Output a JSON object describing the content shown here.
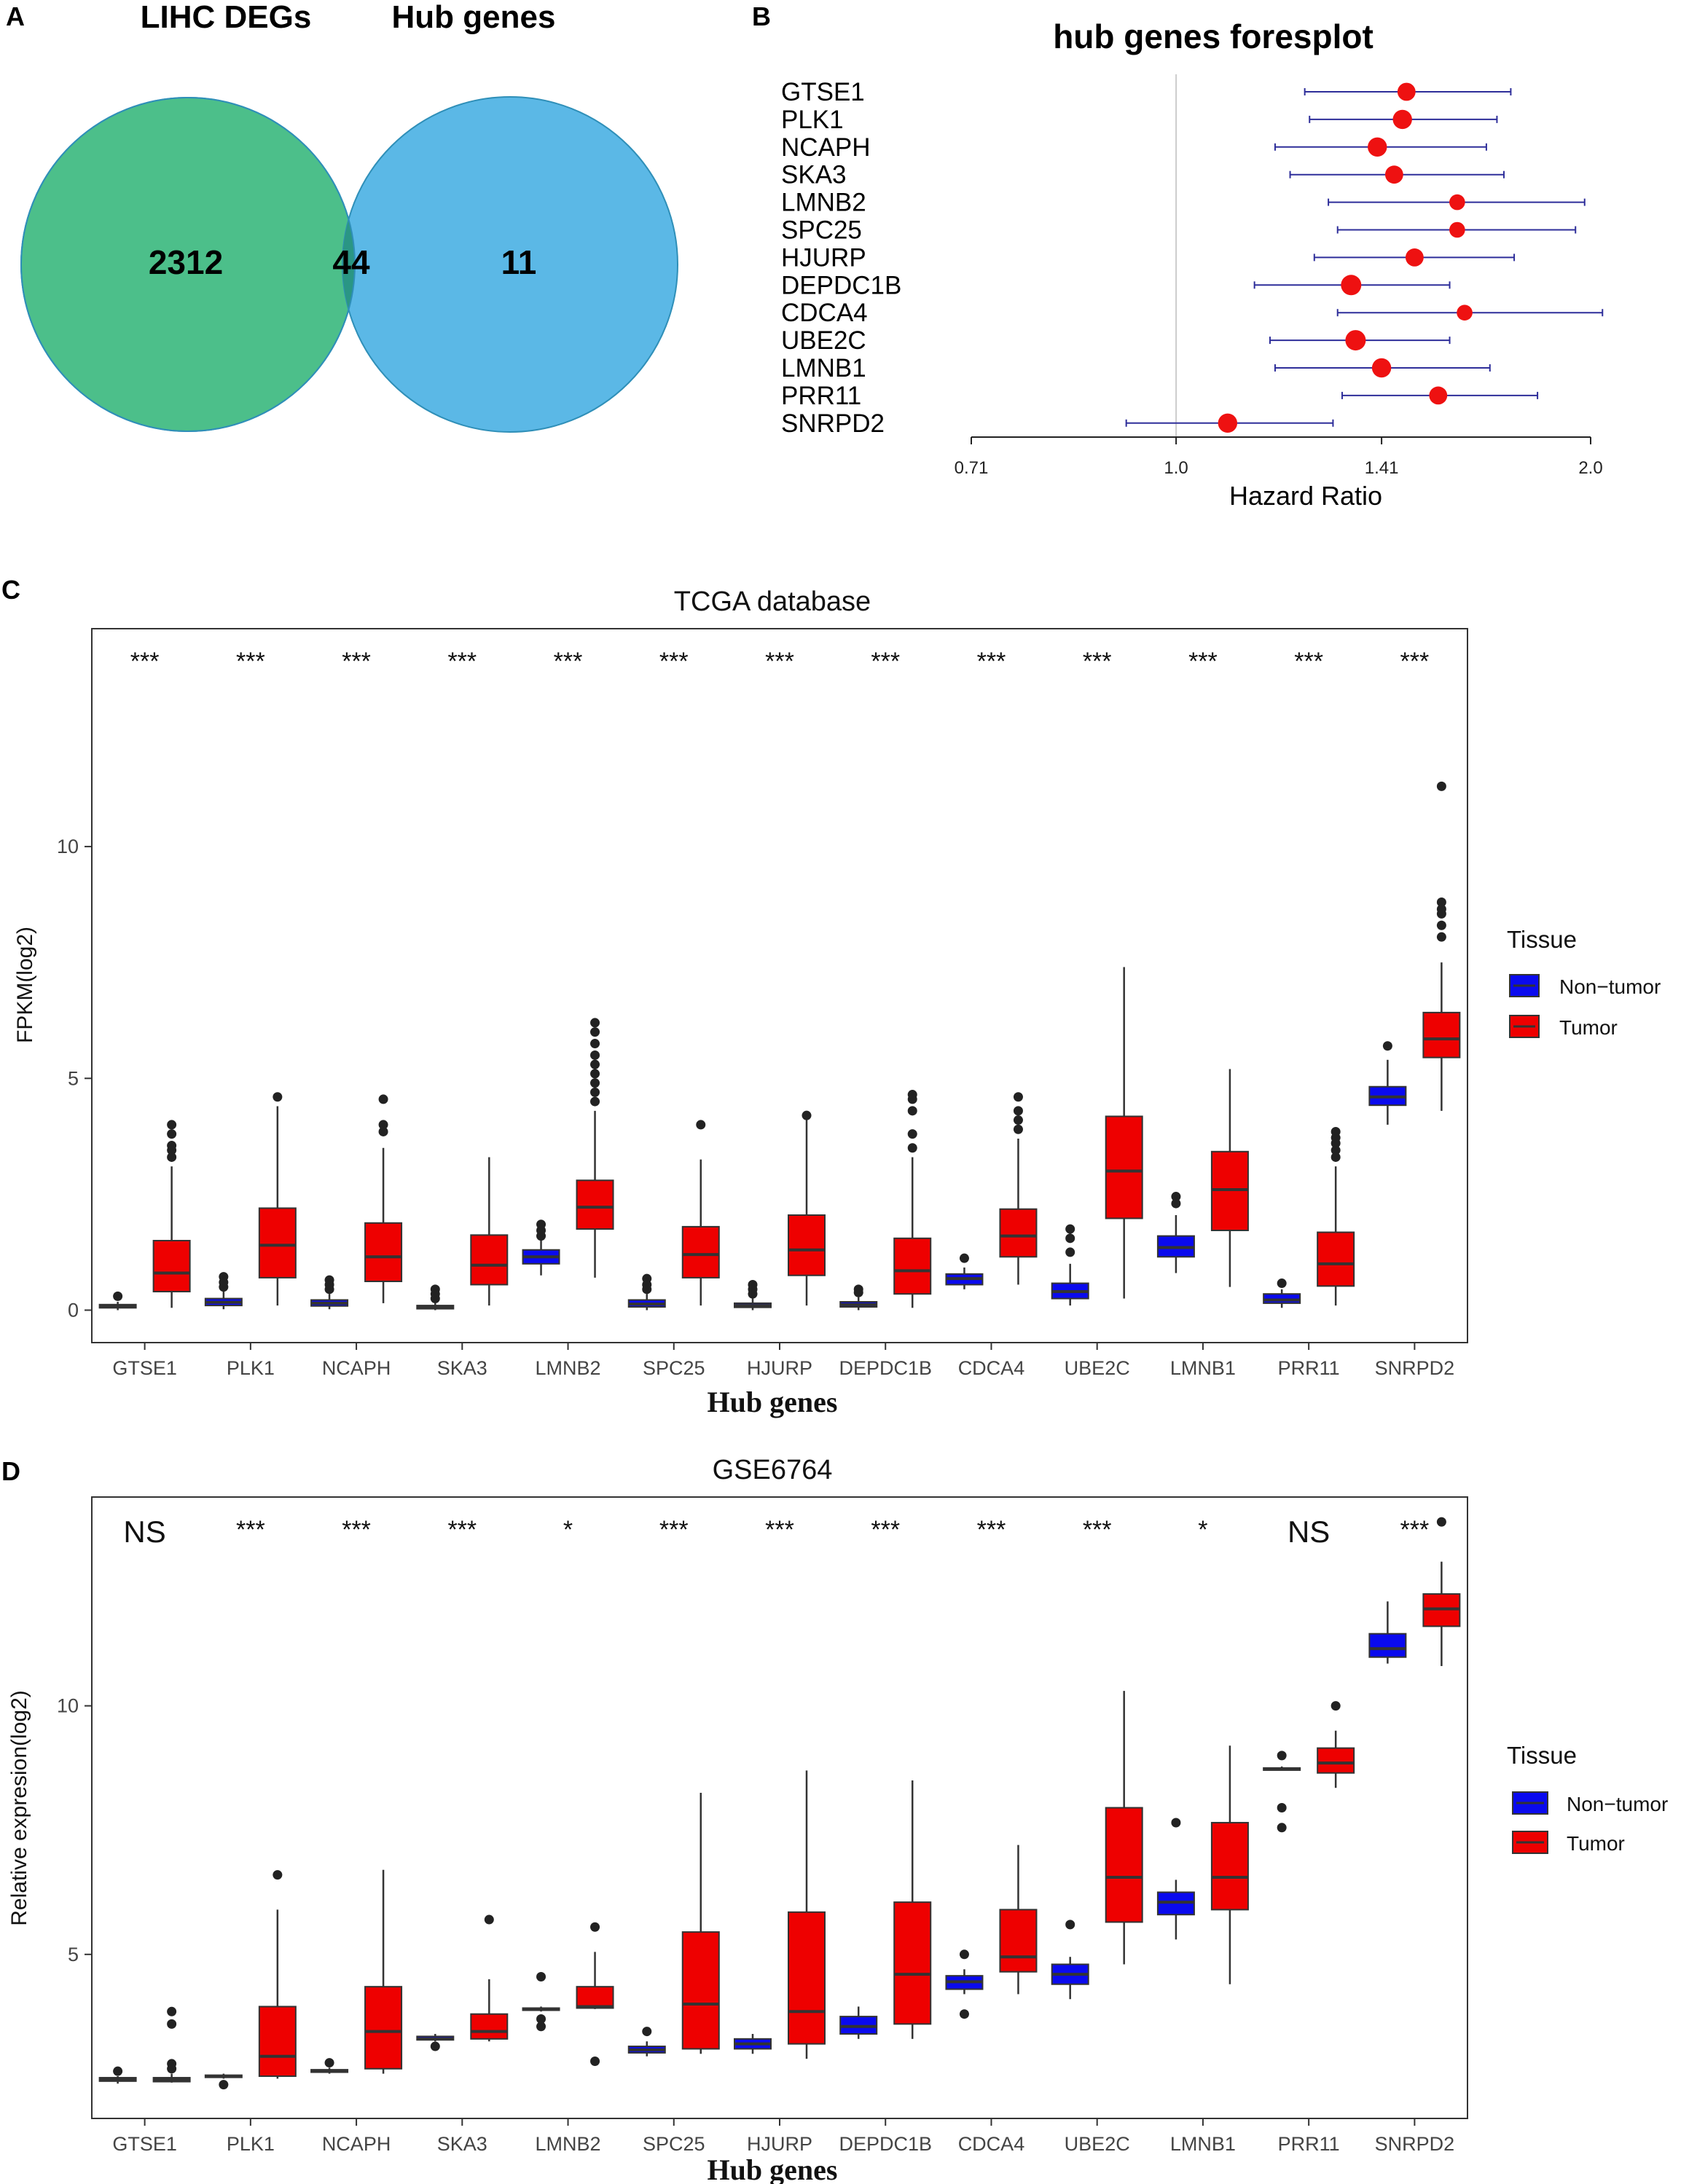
{
  "panel_labels": {
    "a": "A",
    "b": "B",
    "c": "C",
    "d": "D"
  },
  "colors": {
    "venn_left": "#4cbf8a",
    "venn_right": "#5bb8e6",
    "venn_overlap": "#2a9684",
    "forest_point": "#ee1111",
    "forest_line": "#2e2e9a",
    "non_tumor": "#0a0aee",
    "tumor": "#ee0000"
  },
  "chart_data": [
    {
      "type": "venn",
      "sets": [
        "LIHC DEGs",
        "Hub genes"
      ],
      "regions": {
        "left_only": "2312",
        "both": "44",
        "right_only": "11"
      }
    },
    {
      "type": "forest",
      "title": "hub genes foresplot",
      "xlabel": "Hazard Ratio",
      "xscale": "log",
      "xlim": [
        0.71,
        2.0
      ],
      "xticks": [
        0.71,
        1.0,
        1.41,
        2.0
      ],
      "xtick_labels": [
        "0.71",
        "1.0",
        "1.41",
        "2.0"
      ],
      "reference_line": 1.0,
      "rows": [
        {
          "gene": "GTSE1",
          "hr": 1.47,
          "lo": 1.24,
          "hi": 1.75,
          "weight": 0.8
        },
        {
          "gene": "PLK1",
          "hr": 1.46,
          "lo": 1.25,
          "hi": 1.71,
          "weight": 0.9
        },
        {
          "gene": "NCAPH",
          "hr": 1.4,
          "lo": 1.18,
          "hi": 1.68,
          "weight": 0.9
        },
        {
          "gene": "SKA3",
          "hr": 1.44,
          "lo": 1.21,
          "hi": 1.73,
          "weight": 0.8
        },
        {
          "gene": "LMNB2",
          "hr": 1.6,
          "lo": 1.29,
          "hi": 1.98,
          "weight": 0.6
        },
        {
          "gene": "SPC25",
          "hr": 1.6,
          "lo": 1.31,
          "hi": 1.95,
          "weight": 0.6
        },
        {
          "gene": "HJURP",
          "hr": 1.49,
          "lo": 1.26,
          "hi": 1.76,
          "weight": 0.8
        },
        {
          "gene": "DEPDC1B",
          "hr": 1.34,
          "lo": 1.14,
          "hi": 1.58,
          "weight": 1.0
        },
        {
          "gene": "CDCA4",
          "hr": 1.62,
          "lo": 1.31,
          "hi": 2.04,
          "weight": 0.6
        },
        {
          "gene": "UBE2C",
          "hr": 1.35,
          "lo": 1.17,
          "hi": 1.58,
          "weight": 1.0
        },
        {
          "gene": "LMNB1",
          "hr": 1.41,
          "lo": 1.18,
          "hi": 1.69,
          "weight": 0.9
        },
        {
          "gene": "PRR11",
          "hr": 1.55,
          "lo": 1.32,
          "hi": 1.83,
          "weight": 0.8
        },
        {
          "gene": "SNRPD2",
          "hr": 1.09,
          "lo": 0.92,
          "hi": 1.3,
          "weight": 0.9
        }
      ]
    },
    {
      "type": "boxplot",
      "title": "TCGA database",
      "xlabel": "Hub genes",
      "ylabel": "FPKM(log2)",
      "ylim": [
        -0.7,
        14.7
      ],
      "yticks": [
        0,
        5,
        10
      ],
      "legend": {
        "title": "Tissue",
        "items": [
          "Non−tumor",
          "Tumor"
        ],
        "placement": "right"
      },
      "categories": [
        "GTSE1",
        "PLK1",
        "NCAPH",
        "SKA3",
        "LMNB2",
        "SPC25",
        "HJURP",
        "DEPDC1B",
        "CDCA4",
        "UBE2C",
        "LMNB1",
        "PRR11",
        "SNRPD2"
      ],
      "significance": [
        "***",
        "***",
        "***",
        "***",
        "***",
        "***",
        "***",
        "***",
        "***",
        "***",
        "***",
        "***",
        "***"
      ],
      "series": [
        {
          "name": "Non−tumor",
          "boxes": [
            {
              "min": 0.0,
              "q1": 0.05,
              "median": 0.08,
              "q3": 0.12,
              "max": 0.18,
              "outliers": [
                0.3
              ]
            },
            {
              "min": 0.02,
              "q1": 0.1,
              "median": 0.17,
              "q3": 0.25,
              "max": 0.4,
              "outliers": [
                0.5,
                0.6,
                0.72
              ]
            },
            {
              "min": 0.02,
              "q1": 0.09,
              "median": 0.15,
              "q3": 0.22,
              "max": 0.35,
              "outliers": [
                0.45,
                0.55,
                0.65
              ]
            },
            {
              "min": 0.0,
              "q1": 0.03,
              "median": 0.06,
              "q3": 0.1,
              "max": 0.15,
              "outliers": [
                0.25,
                0.35,
                0.45
              ]
            },
            {
              "min": 0.75,
              "q1": 1.0,
              "median": 1.15,
              "q3": 1.3,
              "max": 1.5,
              "outliers": [
                1.6,
                1.72,
                1.85
              ]
            },
            {
              "min": 0.0,
              "q1": 0.07,
              "median": 0.13,
              "q3": 0.22,
              "max": 0.35,
              "outliers": [
                0.45,
                0.55,
                0.68
              ]
            },
            {
              "min": 0.0,
              "q1": 0.06,
              "median": 0.1,
              "q3": 0.15,
              "max": 0.25,
              "outliers": [
                0.35,
                0.45,
                0.55
              ]
            },
            {
              "min": 0.0,
              "q1": 0.07,
              "median": 0.12,
              "q3": 0.18,
              "max": 0.28,
              "outliers": [
                0.38,
                0.45
              ]
            },
            {
              "min": 0.45,
              "q1": 0.55,
              "median": 0.68,
              "q3": 0.78,
              "max": 0.92,
              "outliers": [
                1.12
              ]
            },
            {
              "min": 0.1,
              "q1": 0.25,
              "median": 0.4,
              "q3": 0.58,
              "max": 1.0,
              "outliers": [
                1.25,
                1.55,
                1.75
              ]
            },
            {
              "min": 0.8,
              "q1": 1.15,
              "median": 1.35,
              "q3": 1.6,
              "max": 2.05,
              "outliers": [
                2.3,
                2.45
              ]
            },
            {
              "min": 0.05,
              "q1": 0.15,
              "median": 0.22,
              "q3": 0.35,
              "max": 0.45,
              "outliers": [
                0.58
              ]
            },
            {
              "min": 4.0,
              "q1": 4.42,
              "median": 4.6,
              "q3": 4.82,
              "max": 5.4,
              "outliers": [
                5.7
              ]
            }
          ]
        },
        {
          "name": "Tumor",
          "boxes": [
            {
              "min": 0.05,
              "q1": 0.4,
              "median": 0.8,
              "q3": 1.5,
              "max": 3.1,
              "outliers": [
                3.3,
                3.45,
                3.55,
                3.8,
                4.0
              ]
            },
            {
              "min": 0.1,
              "q1": 0.7,
              "median": 1.4,
              "q3": 2.2,
              "max": 4.4,
              "outliers": [
                4.6
              ]
            },
            {
              "min": 0.15,
              "q1": 0.62,
              "median": 1.15,
              "q3": 1.88,
              "max": 3.5,
              "outliers": [
                3.85,
                4.0,
                4.55
              ]
            },
            {
              "min": 0.1,
              "q1": 0.55,
              "median": 0.97,
              "q3": 1.62,
              "max": 3.3,
              "outliers": []
            },
            {
              "min": 0.7,
              "q1": 1.75,
              "median": 2.22,
              "q3": 2.8,
              "max": 4.3,
              "outliers": [
                4.5,
                4.7,
                4.9,
                5.1,
                5.3,
                5.5,
                5.75,
                6.0,
                6.2
              ]
            },
            {
              "min": 0.1,
              "q1": 0.7,
              "median": 1.2,
              "q3": 1.8,
              "max": 3.25,
              "outliers": [
                4.0
              ]
            },
            {
              "min": 0.1,
              "q1": 0.75,
              "median": 1.3,
              "q3": 2.05,
              "max": 4.1,
              "outliers": [
                4.2
              ]
            },
            {
              "min": 0.05,
              "q1": 0.35,
              "median": 0.85,
              "q3": 1.55,
              "max": 3.3,
              "outliers": [
                3.5,
                3.8,
                4.3,
                4.55,
                4.65
              ]
            },
            {
              "min": 0.55,
              "q1": 1.15,
              "median": 1.6,
              "q3": 2.18,
              "max": 3.7,
              "outliers": [
                3.9,
                4.1,
                4.3,
                4.6
              ]
            },
            {
              "min": 0.25,
              "q1": 1.98,
              "median": 3.0,
              "q3": 4.18,
              "max": 7.4,
              "outliers": []
            },
            {
              "min": 0.5,
              "q1": 1.72,
              "median": 2.6,
              "q3": 3.42,
              "max": 5.2,
              "outliers": []
            },
            {
              "min": 0.1,
              "q1": 0.52,
              "median": 1.0,
              "q3": 1.68,
              "max": 3.1,
              "outliers": [
                3.3,
                3.45,
                3.6,
                3.72,
                3.85
              ]
            },
            {
              "min": 4.3,
              "q1": 5.45,
              "median": 5.85,
              "q3": 6.42,
              "max": 7.5,
              "outliers": [
                8.05,
                8.3,
                8.55,
                8.65,
                8.8,
                11.3
              ]
            }
          ]
        }
      ]
    },
    {
      "type": "boxplot",
      "title": "GSE6764",
      "xlabel": "Hub genes",
      "ylabel": "Relative expresion(log2)",
      "ylim": [
        1.7,
        14.2
      ],
      "yticks": [
        5,
        10
      ],
      "legend": {
        "title": "Tissue",
        "items": [
          "Non−tumor",
          "Tumor"
        ],
        "placement": "right"
      },
      "categories": [
        "GTSE1",
        "PLK1",
        "NCAPH",
        "SKA3",
        "LMNB2",
        "SPC25",
        "HJURP",
        "DEPDC1B",
        "CDCA4",
        "UBE2C",
        "LMNB1",
        "PRR11",
        "SNRPD2"
      ],
      "significance": [
        "NS",
        "***",
        "***",
        "***",
        "*",
        "***",
        "***",
        "***",
        "***",
        "***",
        "*",
        "NS",
        "***"
      ],
      "series": [
        {
          "name": "Non−tumor",
          "boxes": [
            {
              "min": 2.4,
              "q1": 2.45,
              "median": 2.48,
              "q3": 2.52,
              "max": 2.55,
              "outliers": [
                2.65
              ]
            },
            {
              "min": 2.5,
              "q1": 2.53,
              "median": 2.55,
              "q3": 2.57,
              "max": 2.6,
              "outliers": [
                2.38
              ]
            },
            {
              "min": 2.6,
              "q1": 2.63,
              "median": 2.65,
              "q3": 2.68,
              "max": 2.72,
              "outliers": [
                2.82
              ]
            },
            {
              "min": 3.25,
              "q1": 3.28,
              "median": 3.3,
              "q3": 3.35,
              "max": 3.4,
              "outliers": [
                3.15
              ]
            },
            {
              "min": 3.85,
              "q1": 3.88,
              "median": 3.9,
              "q3": 3.92,
              "max": 3.95,
              "outliers": [
                3.55,
                3.7,
                4.55
              ]
            },
            {
              "min": 2.95,
              "q1": 3.02,
              "median": 3.08,
              "q3": 3.15,
              "max": 3.25,
              "outliers": [
                3.45
              ]
            },
            {
              "min": 3.0,
              "q1": 3.1,
              "median": 3.2,
              "q3": 3.3,
              "max": 3.4,
              "outliers": []
            },
            {
              "min": 3.3,
              "q1": 3.4,
              "median": 3.55,
              "q3": 3.75,
              "max": 3.95,
              "outliers": []
            },
            {
              "min": 4.2,
              "q1": 4.3,
              "median": 4.45,
              "q3": 4.57,
              "max": 4.7,
              "outliers": [
                3.8,
                5.0
              ]
            },
            {
              "min": 4.1,
              "q1": 4.4,
              "median": 4.6,
              "q3": 4.8,
              "max": 4.95,
              "outliers": [
                5.6
              ]
            },
            {
              "min": 5.3,
              "q1": 5.8,
              "median": 6.05,
              "q3": 6.25,
              "max": 6.5,
              "outliers": [
                7.65
              ]
            },
            {
              "min": 8.7,
              "q1": 8.72,
              "median": 8.73,
              "q3": 8.75,
              "max": 8.78,
              "outliers": [
                7.55,
                7.95,
                9.0
              ]
            },
            {
              "min": 10.85,
              "q1": 10.98,
              "median": 11.15,
              "q3": 11.45,
              "max": 12.1,
              "outliers": []
            }
          ]
        },
        {
          "name": "Tumor",
          "boxes": [
            {
              "min": 2.42,
              "q1": 2.44,
              "median": 2.48,
              "q3": 2.52,
              "max": 2.6,
              "outliers": [
                2.7,
                2.8,
                3.6,
                3.85
              ]
            },
            {
              "min": 2.5,
              "q1": 2.55,
              "median": 2.95,
              "q3": 3.95,
              "max": 5.9,
              "outliers": [
                6.6
              ]
            },
            {
              "min": 2.6,
              "q1": 2.7,
              "median": 3.45,
              "q3": 4.35,
              "max": 6.7,
              "outliers": []
            },
            {
              "min": 3.25,
              "q1": 3.3,
              "median": 3.45,
              "q3": 3.8,
              "max": 4.5,
              "outliers": [
                5.7
              ]
            },
            {
              "min": 3.9,
              "q1": 3.92,
              "median": 3.95,
              "q3": 4.35,
              "max": 5.05,
              "outliers": [
                2.85,
                5.55
              ]
            },
            {
              "min": 3.0,
              "q1": 3.1,
              "median": 4.0,
              "q3": 5.45,
              "max": 8.25,
              "outliers": []
            },
            {
              "min": 2.9,
              "q1": 3.2,
              "median": 3.85,
              "q3": 5.85,
              "max": 8.7,
              "outliers": []
            },
            {
              "min": 3.3,
              "q1": 3.6,
              "median": 4.6,
              "q3": 6.05,
              "max": 8.5,
              "outliers": []
            },
            {
              "min": 4.2,
              "q1": 4.65,
              "median": 4.95,
              "q3": 5.9,
              "max": 7.2,
              "outliers": []
            },
            {
              "min": 4.8,
              "q1": 5.65,
              "median": 6.55,
              "q3": 7.95,
              "max": 10.3,
              "outliers": []
            },
            {
              "min": 4.4,
              "q1": 5.9,
              "median": 6.55,
              "q3": 7.65,
              "max": 9.2,
              "outliers": []
            },
            {
              "min": 8.35,
              "q1": 8.65,
              "median": 8.85,
              "q3": 9.15,
              "max": 9.5,
              "outliers": [
                10.0
              ]
            },
            {
              "min": 10.8,
              "q1": 11.6,
              "median": 11.95,
              "q3": 12.25,
              "max": 12.9,
              "outliers": [
                13.7
              ]
            }
          ]
        }
      ]
    }
  ]
}
